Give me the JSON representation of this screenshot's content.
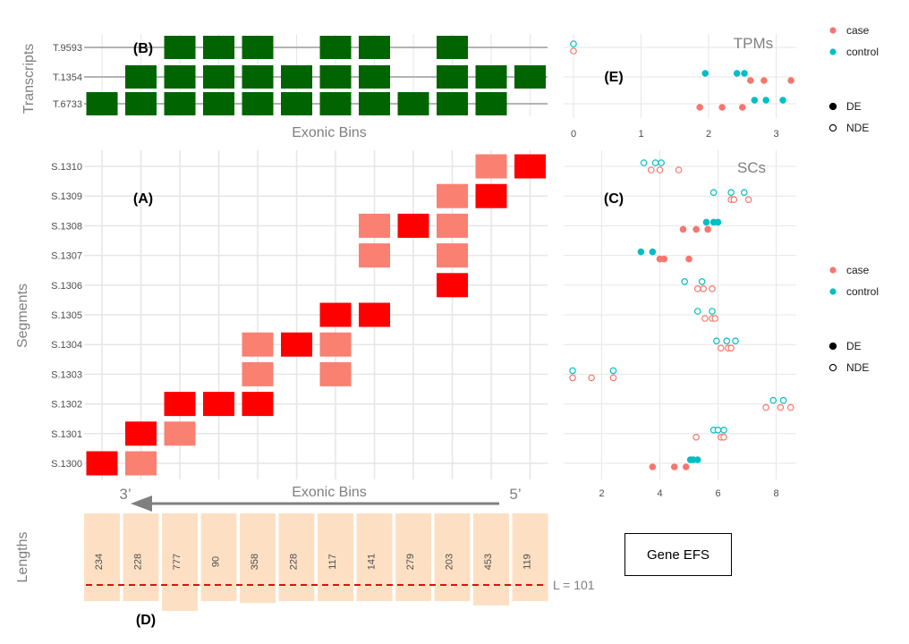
{
  "colors": {
    "transcript_fill": "#006400",
    "segment_dark": "#ff0000",
    "segment_light": "#fa8072",
    "length_fill": "#fde0c4",
    "threshold_line": "#dd1111",
    "case": "#f8766d",
    "control": "#00bfc4",
    "grid": "#e6e6e6",
    "track_line": "#b3b3b3",
    "arrow": "#808080"
  },
  "panel_labels": {
    "A": "(A)",
    "B": "(B)",
    "C": "(C)",
    "D": "(D)",
    "E": "(E)"
  },
  "transcripts": {
    "axis_title": "Transcripts",
    "xlabel": "Exonic Bins",
    "rows": [
      {
        "label": "T.9593",
        "bins": [
          3,
          4,
          5,
          7,
          8,
          10
        ]
      },
      {
        "label": "T.1354",
        "bins": [
          2,
          3,
          4,
          5,
          6,
          7,
          8,
          10,
          11,
          12
        ]
      },
      {
        "label": "T.6733",
        "bins": [
          1,
          2,
          3,
          4,
          5,
          6,
          7,
          8,
          9,
          10,
          11
        ]
      }
    ]
  },
  "segments": {
    "axis_title": "Segments",
    "xlabel": "Exonic Bins",
    "direction_left": "3’",
    "direction_right": "5’",
    "rows": [
      {
        "label": "S.1300",
        "cells": [
          [
            1,
            "dark"
          ],
          [
            2,
            "light"
          ]
        ]
      },
      {
        "label": "S.1301",
        "cells": [
          [
            2,
            "dark"
          ],
          [
            3,
            "light"
          ]
        ]
      },
      {
        "label": "S.1302",
        "cells": [
          [
            3,
            "dark"
          ],
          [
            4,
            "dark"
          ],
          [
            5,
            "dark"
          ]
        ]
      },
      {
        "label": "S.1303",
        "cells": [
          [
            5,
            "light"
          ],
          [
            7,
            "light"
          ]
        ]
      },
      {
        "label": "S.1304",
        "cells": [
          [
            5,
            "light"
          ],
          [
            6,
            "dark"
          ],
          [
            7,
            "light"
          ]
        ]
      },
      {
        "label": "S.1305",
        "cells": [
          [
            7,
            "dark"
          ],
          [
            8,
            "dark"
          ]
        ]
      },
      {
        "label": "S.1306",
        "cells": [
          [
            10,
            "dark"
          ]
        ]
      },
      {
        "label": "S.1307",
        "cells": [
          [
            8,
            "light"
          ],
          [
            10,
            "light"
          ]
        ]
      },
      {
        "label": "S.1308",
        "cells": [
          [
            8,
            "light"
          ],
          [
            9,
            "dark"
          ],
          [
            10,
            "light"
          ]
        ]
      },
      {
        "label": "S.1309",
        "cells": [
          [
            10,
            "light"
          ],
          [
            11,
            "dark"
          ]
        ]
      },
      {
        "label": "S.1310",
        "cells": [
          [
            11,
            "light"
          ],
          [
            12,
            "dark"
          ]
        ]
      }
    ]
  },
  "lengths": {
    "axis_title": "Lengths",
    "threshold": 101,
    "threshold_label": "L = 101",
    "values": [
      {
        "bin": 1,
        "label": "234",
        "value": 234
      },
      {
        "bin": 2,
        "label": "228",
        "value": 228
      },
      {
        "bin": 3,
        "label": "777",
        "value": 777
      },
      {
        "bin": 4,
        "label": "90",
        "value": 90
      },
      {
        "bin": 5,
        "label": "358",
        "value": 358
      },
      {
        "bin": 6,
        "label": "228",
        "value": 228
      },
      {
        "bin": 7,
        "label": "117",
        "value": 117
      },
      {
        "bin": 8,
        "label": "141",
        "value": 141
      },
      {
        "bin": 9,
        "label": "279",
        "value": 279
      },
      {
        "bin": 10,
        "label": "203",
        "value": 203
      },
      {
        "bin": 11,
        "label": "453",
        "value": 453
      },
      {
        "bin": 12,
        "label": "119",
        "value": 119
      }
    ]
  },
  "chart_data": [
    {
      "type": "scatter",
      "title": "TPMs",
      "xlim": [
        -0.1,
        3.3
      ],
      "xticks": [
        0,
        1,
        2,
        3
      ],
      "grid": true,
      "rows": [
        "T.9593",
        "T.1354",
        "T.6733"
      ],
      "points": [
        {
          "row": "T.9593",
          "group": "control",
          "de": false,
          "x": 0.0
        },
        {
          "row": "T.9593",
          "group": "case",
          "de": false,
          "x": 0.0
        },
        {
          "row": "T.1354",
          "group": "control",
          "de": true,
          "x": 1.95
        },
        {
          "row": "T.1354",
          "group": "control",
          "de": true,
          "x": 2.42
        },
        {
          "row": "T.1354",
          "group": "control",
          "de": true,
          "x": 2.53
        },
        {
          "row": "T.1354",
          "group": "case",
          "de": true,
          "x": 2.62
        },
        {
          "row": "T.1354",
          "group": "case",
          "de": true,
          "x": 2.82
        },
        {
          "row": "T.1354",
          "group": "case",
          "de": true,
          "x": 3.22
        },
        {
          "row": "T.6733",
          "group": "control",
          "de": true,
          "x": 2.68
        },
        {
          "row": "T.6733",
          "group": "control",
          "de": true,
          "x": 2.85
        },
        {
          "row": "T.6733",
          "group": "control",
          "de": true,
          "x": 3.1
        },
        {
          "row": "T.6733",
          "group": "case",
          "de": true,
          "x": 1.87
        },
        {
          "row": "T.6733",
          "group": "case",
          "de": true,
          "x": 2.2
        },
        {
          "row": "T.6733",
          "group": "case",
          "de": true,
          "x": 2.5
        }
      ]
    },
    {
      "type": "scatter",
      "title": "SCs",
      "xlim": [
        0.9,
        8.6
      ],
      "xticks": [
        2,
        4,
        6,
        8
      ],
      "grid": true,
      "rows": [
        "S.1300",
        "S.1301",
        "S.1302",
        "S.1303",
        "S.1304",
        "S.1305",
        "S.1306",
        "S.1307",
        "S.1308",
        "S.1309",
        "S.1310"
      ],
      "points": [
        {
          "row": "S.1310",
          "group": "control",
          "de": false,
          "x": 3.45
        },
        {
          "row": "S.1310",
          "group": "control",
          "de": false,
          "x": 3.85
        },
        {
          "row": "S.1310",
          "group": "control",
          "de": false,
          "x": 4.05
        },
        {
          "row": "S.1310",
          "group": "case",
          "de": false,
          "x": 3.7
        },
        {
          "row": "S.1310",
          "group": "case",
          "de": false,
          "x": 4.0
        },
        {
          "row": "S.1310",
          "group": "case",
          "de": false,
          "x": 4.65
        },
        {
          "row": "S.1309",
          "group": "control",
          "de": false,
          "x": 5.85
        },
        {
          "row": "S.1309",
          "group": "control",
          "de": false,
          "x": 6.45
        },
        {
          "row": "S.1309",
          "group": "control",
          "de": false,
          "x": 6.9
        },
        {
          "row": "S.1309",
          "group": "case",
          "de": false,
          "x": 6.45
        },
        {
          "row": "S.1309",
          "group": "case",
          "de": false,
          "x": 6.55
        },
        {
          "row": "S.1309",
          "group": "case",
          "de": false,
          "x": 7.05
        },
        {
          "row": "S.1308",
          "group": "control",
          "de": true,
          "x": 5.6
        },
        {
          "row": "S.1308",
          "group": "control",
          "de": true,
          "x": 5.85
        },
        {
          "row": "S.1308",
          "group": "control",
          "de": true,
          "x": 6.0
        },
        {
          "row": "S.1308",
          "group": "case",
          "de": true,
          "x": 4.8
        },
        {
          "row": "S.1308",
          "group": "case",
          "de": true,
          "x": 5.25
        },
        {
          "row": "S.1308",
          "group": "case",
          "de": true,
          "x": 5.65
        },
        {
          "row": "S.1307",
          "group": "control",
          "de": true,
          "x": 3.35
        },
        {
          "row": "S.1307",
          "group": "control",
          "de": true,
          "x": 3.75
        },
        {
          "row": "S.1307",
          "group": "case",
          "de": true,
          "x": 4.0
        },
        {
          "row": "S.1307",
          "group": "case",
          "de": true,
          "x": 4.15
        },
        {
          "row": "S.1307",
          "group": "case",
          "de": true,
          "x": 5.0
        },
        {
          "row": "S.1306",
          "group": "control",
          "de": false,
          "x": 4.85
        },
        {
          "row": "S.1306",
          "group": "control",
          "de": false,
          "x": 5.45
        },
        {
          "row": "S.1306",
          "group": "case",
          "de": false,
          "x": 5.3
        },
        {
          "row": "S.1306",
          "group": "case",
          "de": false,
          "x": 5.5
        },
        {
          "row": "S.1306",
          "group": "case",
          "de": false,
          "x": 5.8
        },
        {
          "row": "S.1305",
          "group": "control",
          "de": false,
          "x": 5.3
        },
        {
          "row": "S.1305",
          "group": "control",
          "de": false,
          "x": 5.8
        },
        {
          "row": "S.1305",
          "group": "case",
          "de": false,
          "x": 5.55
        },
        {
          "row": "S.1305",
          "group": "case",
          "de": false,
          "x": 5.8
        },
        {
          "row": "S.1305",
          "group": "case",
          "de": false,
          "x": 5.9
        },
        {
          "row": "S.1304",
          "group": "control",
          "de": false,
          "x": 5.95
        },
        {
          "row": "S.1304",
          "group": "control",
          "de": false,
          "x": 6.3
        },
        {
          "row": "S.1304",
          "group": "control",
          "de": false,
          "x": 6.6
        },
        {
          "row": "S.1304",
          "group": "case",
          "de": false,
          "x": 6.1
        },
        {
          "row": "S.1304",
          "group": "case",
          "de": false,
          "x": 6.35
        },
        {
          "row": "S.1304",
          "group": "case",
          "de": false,
          "x": 6.45
        },
        {
          "row": "S.1303",
          "group": "control",
          "de": false,
          "x": 1.0
        },
        {
          "row": "S.1303",
          "group": "control",
          "de": false,
          "x": 2.4
        },
        {
          "row": "S.1303",
          "group": "case",
          "de": false,
          "x": 1.0
        },
        {
          "row": "S.1303",
          "group": "case",
          "de": false,
          "x": 1.65
        },
        {
          "row": "S.1303",
          "group": "case",
          "de": false,
          "x": 2.4
        },
        {
          "row": "S.1302",
          "group": "control",
          "de": false,
          "x": 7.9
        },
        {
          "row": "S.1302",
          "group": "control",
          "de": false,
          "x": 8.25
        },
        {
          "row": "S.1302",
          "group": "case",
          "de": false,
          "x": 7.65
        },
        {
          "row": "S.1302",
          "group": "case",
          "de": false,
          "x": 8.15
        },
        {
          "row": "S.1302",
          "group": "case",
          "de": false,
          "x": 8.5
        },
        {
          "row": "S.1301",
          "group": "control",
          "de": false,
          "x": 5.85
        },
        {
          "row": "S.1301",
          "group": "control",
          "de": false,
          "x": 6.0
        },
        {
          "row": "S.1301",
          "group": "control",
          "de": false,
          "x": 6.2
        },
        {
          "row": "S.1301",
          "group": "case",
          "de": false,
          "x": 5.25
        },
        {
          "row": "S.1301",
          "group": "case",
          "de": false,
          "x": 6.1
        },
        {
          "row": "S.1301",
          "group": "case",
          "de": false,
          "x": 6.2
        },
        {
          "row": "S.1300",
          "group": "control",
          "de": true,
          "x": 5.05
        },
        {
          "row": "S.1300",
          "group": "control",
          "de": true,
          "x": 5.15
        },
        {
          "row": "S.1300",
          "group": "control",
          "de": true,
          "x": 5.3
        },
        {
          "row": "S.1300",
          "group": "case",
          "de": true,
          "x": 3.75
        },
        {
          "row": "S.1300",
          "group": "case",
          "de": true,
          "x": 4.5
        },
        {
          "row": "S.1300",
          "group": "case",
          "de": true,
          "x": 4.9
        }
      ]
    }
  ],
  "legend": {
    "groups": [
      {
        "key": "case",
        "label": "case"
      },
      {
        "key": "control",
        "label": "control"
      }
    ],
    "status": [
      {
        "key": "DE",
        "label": "DE",
        "filled": true
      },
      {
        "key": "NDE",
        "label": "NDE",
        "filled": false
      }
    ]
  },
  "gene_box": {
    "label": "Gene EFS"
  }
}
